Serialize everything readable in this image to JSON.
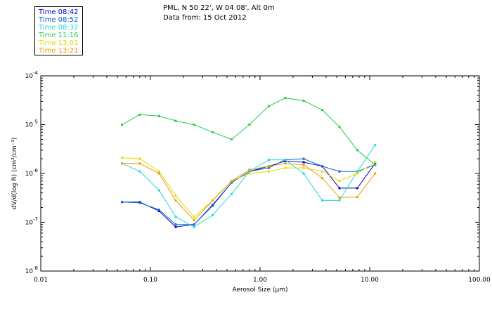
{
  "header": {
    "line1": "PML, N 50 22', W 04 08', Alt 0m",
    "line2": "Data from: 15 Oct 2012"
  },
  "legend": [
    {
      "label": "Time 08:42",
      "color": "#0000c8"
    },
    {
      "label": "Time 08:52",
      "color": "#0a64c8"
    },
    {
      "label": "Time 08:32",
      "color": "#22d8e0"
    },
    {
      "label": "Time 11:16",
      "color": "#22cc44"
    },
    {
      "label": "Time 13:01",
      "color": "#e6d800"
    },
    {
      "label": "Time 13:21",
      "color": "#e6a000"
    }
  ],
  "chart_data": {
    "type": "line",
    "xlabel": "Aerosol Size (µm)",
    "ylabel": "dV/d(log R) (cm³/cm⁻³)",
    "x_scale": "log",
    "y_scale": "log",
    "xlim": [
      0.01,
      100
    ],
    "ylim": [
      1e-08,
      0.0001
    ],
    "x_ticks": [
      "0.01",
      "0.10",
      "1.00",
      "10.00",
      "100.00"
    ],
    "y_tick_exponents": [
      "-4",
      "-5",
      "-6",
      "-7",
      "-8"
    ],
    "y_tick_base": "10",
    "x": [
      0.055,
      0.08,
      0.12,
      0.17,
      0.25,
      0.37,
      0.55,
      0.8,
      1.2,
      1.7,
      2.5,
      3.7,
      5.3,
      7.7,
      11.2
    ],
    "series": [
      {
        "name": "Time 08:42",
        "color": "#0000c8",
        "values": [
          2.6e-07,
          2.6e-07,
          1.7e-07,
          8e-08,
          9e-08,
          2.2e-07,
          6.5e-07,
          1.1e-06,
          1.4e-06,
          1.8e-06,
          1.7e-06,
          1.4e-06,
          5e-07,
          5e-07,
          1.6e-06
        ]
      },
      {
        "name": "Time 08:52",
        "color": "#0a64c8",
        "values": [
          2.6e-07,
          2.5e-07,
          1.8e-07,
          9e-08,
          9e-08,
          2.3e-07,
          6.5e-07,
          1.1e-06,
          1.3e-06,
          1.9e-06,
          2e-06,
          1.4e-06,
          1.1e-06,
          1.1e-06,
          1.5e-06
        ]
      },
      {
        "name": "Time 08:32",
        "color": "#22d8e0",
        "values": [
          1.6e-06,
          1.1e-06,
          4.5e-07,
          1.3e-07,
          8e-08,
          1.4e-07,
          3.8e-07,
          1.1e-06,
          1.9e-06,
          1.9e-06,
          1e-06,
          2.8e-07,
          2.8e-07,
          1.1e-06,
          3.8e-06
        ]
      },
      {
        "name": "Time 11:16",
        "color": "#22cc44",
        "values": [
          1e-05,
          1.6e-05,
          1.5e-05,
          1.2e-05,
          1e-05,
          7e-06,
          5e-06,
          1e-05,
          2.4e-05,
          3.5e-05,
          3.1e-05,
          2e-05,
          9e-06,
          3e-06,
          1.5e-06
        ]
      },
      {
        "name": "Time 13:01",
        "color": "#e6d800",
        "values": [
          2.1e-06,
          2e-06,
          1.1e-06,
          3.5e-07,
          1.3e-07,
          2.8e-07,
          7e-07,
          1e-06,
          1.1e-06,
          1.3e-06,
          1.3e-06,
          1.1e-06,
          7e-07,
          1e-06,
          1.7e-06
        ]
      },
      {
        "name": "Time 13:21",
        "color": "#e6a000",
        "values": [
          1.6e-06,
          1.6e-06,
          1e-06,
          2.8e-07,
          1.1e-07,
          2.8e-07,
          7e-07,
          1.2e-06,
          1.4e-06,
          1.6e-06,
          1.5e-06,
          8e-07,
          3.2e-07,
          3.3e-07,
          1e-06
        ]
      }
    ]
  }
}
